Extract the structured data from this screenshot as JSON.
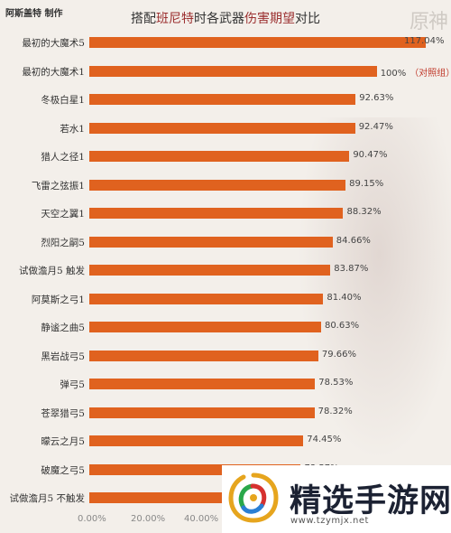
{
  "header": {
    "author": "阿斯盖特 制作",
    "title_parts": [
      "搭配",
      "班尼特",
      "时各武器",
      "伤害期望",
      "对比"
    ],
    "game_logo": "原神"
  },
  "watermark": {
    "name": "精选手游网",
    "url": "www.tzymjx.net"
  },
  "colors": {
    "bar": "#e0621f",
    "title_highlight": "#9b2f2f",
    "annotation": "#c0392b"
  },
  "chart_data": {
    "type": "bar",
    "orientation": "horizontal",
    "title": "搭配班尼特时各武器伤害期望对比",
    "xlim": [
      0,
      117.04
    ],
    "x_ticks": [
      "0.00%",
      "20.00%",
      "40.00%"
    ],
    "grid": false,
    "categories": [
      "最初的大魔术5",
      "最初的大魔术1",
      "冬极白星1",
      "若水1",
      "猎人之径1",
      "飞雷之弦振1",
      "天空之翼1",
      "烈阳之嗣5",
      "试做澹月5 触发",
      "阿莫斯之弓1",
      "静谧之曲5",
      "黑岩战弓5",
      "弹弓5",
      "苍翠猎弓5",
      "曚云之月5",
      "破魔之弓5",
      "试做澹月5 不触发"
    ],
    "values": [
      117.04,
      100,
      92.63,
      92.47,
      90.47,
      89.15,
      88.32,
      84.66,
      83.87,
      81.4,
      80.63,
      79.66,
      78.53,
      78.32,
      74.45,
      73.57,
      71.2
    ],
    "value_labels": [
      "117.04%",
      "100%",
      "92.63%",
      "92.47%",
      "90.47%",
      "89.15%",
      "88.32%",
      "84.66%",
      "83.87%",
      "81.40%",
      "80.63%",
      "79.66%",
      "78.53%",
      "78.32%",
      "74.45%",
      "73.57%",
      ""
    ],
    "annotations": [
      {
        "category": "最初的大魔术1",
        "text": "（对照组）"
      }
    ]
  }
}
